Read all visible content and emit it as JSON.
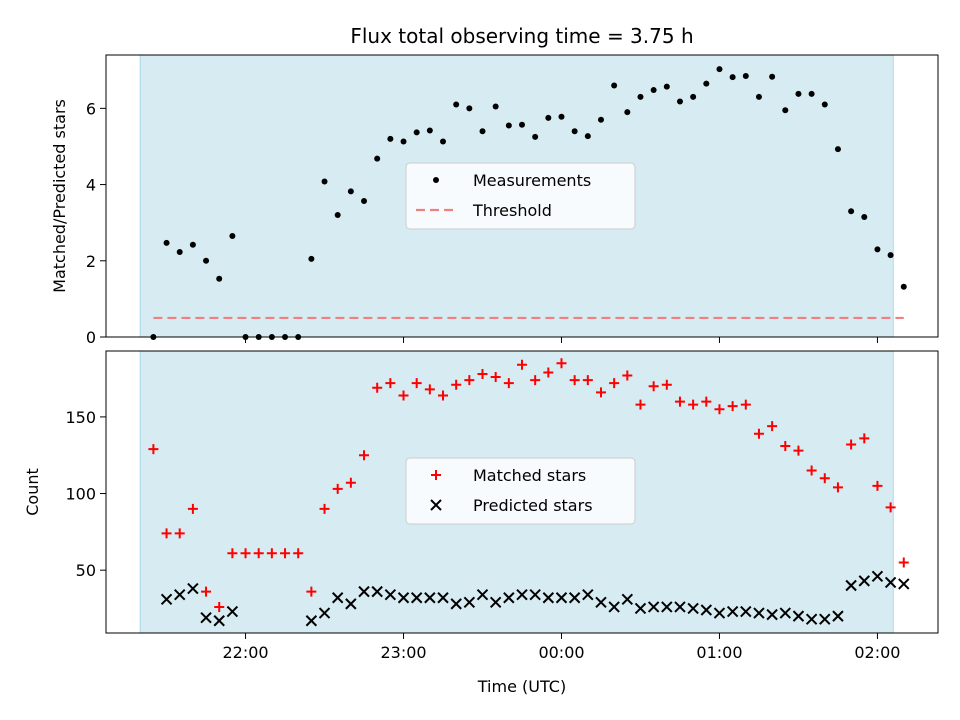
{
  "chart_data": [
    {
      "type": "scatter",
      "title": "Flux total observing time = 3.75 h",
      "xlabel": "",
      "ylabel": "Matched/Predicted stars",
      "ylim": [
        0,
        7.4
      ],
      "yticks": [
        0,
        2,
        4,
        6
      ],
      "shaded_span": [
        "21:20",
        "02:06"
      ],
      "shade_color": "#add8e6",
      "legend_position": "center",
      "series": [
        {
          "name": "Measurements",
          "marker": "dot",
          "color": "#000000",
          "points": [
            [
              "21:25",
              0.0
            ],
            [
              "21:30",
              2.47
            ],
            [
              "21:35",
              2.23
            ],
            [
              "21:40",
              2.42
            ],
            [
              "21:45",
              2.0
            ],
            [
              "21:50",
              1.53
            ],
            [
              "21:55",
              2.65
            ],
            [
              "22:00",
              0.0
            ],
            [
              "22:05",
              0.0
            ],
            [
              "22:10",
              0.0
            ],
            [
              "22:15",
              0.0
            ],
            [
              "22:20",
              0.0
            ],
            [
              "22:25",
              2.05
            ],
            [
              "22:30",
              4.08
            ],
            [
              "22:35",
              3.2
            ],
            [
              "22:40",
              3.82
            ],
            [
              "22:45",
              3.57
            ],
            [
              "22:50",
              4.68
            ],
            [
              "22:55",
              5.2
            ],
            [
              "23:00",
              5.13
            ],
            [
              "23:05",
              5.37
            ],
            [
              "23:10",
              5.42
            ],
            [
              "23:15",
              5.13
            ],
            [
              "23:20",
              6.1
            ],
            [
              "23:25",
              6.0
            ],
            [
              "23:30",
              5.4
            ],
            [
              "23:35",
              6.05
            ],
            [
              "23:40",
              5.55
            ],
            [
              "23:45",
              5.57
            ],
            [
              "23:50",
              5.25
            ],
            [
              "23:55",
              5.75
            ],
            [
              "00:00",
              5.78
            ],
            [
              "00:05",
              5.4
            ],
            [
              "00:10",
              5.27
            ],
            [
              "00:15",
              5.7
            ],
            [
              "00:20",
              6.6
            ],
            [
              "00:25",
              5.9
            ],
            [
              "00:30",
              6.3
            ],
            [
              "00:35",
              6.48
            ],
            [
              "00:40",
              6.57
            ],
            [
              "00:45",
              6.18
            ],
            [
              "00:50",
              6.3
            ],
            [
              "00:55",
              6.65
            ],
            [
              "01:00",
              7.03
            ],
            [
              "01:05",
              6.82
            ],
            [
              "01:10",
              6.85
            ],
            [
              "01:15",
              6.3
            ],
            [
              "01:20",
              6.83
            ],
            [
              "01:25",
              5.95
            ],
            [
              "01:30",
              6.38
            ],
            [
              "01:35",
              6.38
            ],
            [
              "01:40",
              6.1
            ],
            [
              "01:45",
              4.93
            ],
            [
              "01:50",
              3.3
            ],
            [
              "01:55",
              3.15
            ],
            [
              "02:00",
              2.3
            ],
            [
              "02:05",
              2.15
            ],
            [
              "02:10",
              1.32
            ]
          ]
        },
        {
          "name": "Threshold",
          "marker": "dashed-line",
          "color": "#f08080",
          "points": [
            [
              "21:25",
              0.5
            ],
            [
              "02:10",
              0.5
            ]
          ]
        }
      ]
    },
    {
      "type": "scatter",
      "title": "",
      "xlabel": "Time (UTC)",
      "ylabel": "Count",
      "ylim": [
        9,
        193
      ],
      "yticks": [
        50,
        100,
        150
      ],
      "xticks": [
        "22:00",
        "23:00",
        "00:00",
        "01:00",
        "02:00"
      ],
      "shaded_span": [
        "21:20",
        "02:06"
      ],
      "shade_color": "#add8e6",
      "legend_position": "center",
      "series": [
        {
          "name": "Matched stars",
          "marker": "plus",
          "color": "#ff0000",
          "points": [
            [
              "21:25",
              129
            ],
            [
              "21:30",
              74
            ],
            [
              "21:35",
              74
            ],
            [
              "21:40",
              90
            ],
            [
              "21:45",
              36
            ],
            [
              "21:50",
              26
            ],
            [
              "21:55",
              61
            ],
            [
              "22:00",
              61
            ],
            [
              "22:05",
              61
            ],
            [
              "22:10",
              61
            ],
            [
              "22:15",
              61
            ],
            [
              "22:20",
              61
            ],
            [
              "22:25",
              36
            ],
            [
              "22:30",
              90
            ],
            [
              "22:35",
              103
            ],
            [
              "22:40",
              107
            ],
            [
              "22:45",
              125
            ],
            [
              "22:50",
              169
            ],
            [
              "22:55",
              172
            ],
            [
              "23:00",
              164
            ],
            [
              "23:05",
              172
            ],
            [
              "23:10",
              168
            ],
            [
              "23:15",
              164
            ],
            [
              "23:20",
              171
            ],
            [
              "23:25",
              174
            ],
            [
              "23:30",
              178
            ],
            [
              "23:35",
              176
            ],
            [
              "23:40",
              172
            ],
            [
              "23:45",
              184
            ],
            [
              "23:50",
              174
            ],
            [
              "23:55",
              179
            ],
            [
              "00:00",
              185
            ],
            [
              "00:05",
              174
            ],
            [
              "00:10",
              174
            ],
            [
              "00:15",
              166
            ],
            [
              "00:20",
              172
            ],
            [
              "00:25",
              177
            ],
            [
              "00:30",
              158
            ],
            [
              "00:35",
              170
            ],
            [
              "00:40",
              171
            ],
            [
              "00:45",
              160
            ],
            [
              "00:50",
              158
            ],
            [
              "00:55",
              160
            ],
            [
              "01:00",
              155
            ],
            [
              "01:05",
              157
            ],
            [
              "01:10",
              158
            ],
            [
              "01:15",
              139
            ],
            [
              "01:20",
              144
            ],
            [
              "01:25",
              131
            ],
            [
              "01:30",
              128
            ],
            [
              "01:35",
              115
            ],
            [
              "01:40",
              110
            ],
            [
              "01:45",
              104
            ],
            [
              "01:50",
              132
            ],
            [
              "01:55",
              136
            ],
            [
              "02:00",
              105
            ],
            [
              "02:05",
              91
            ],
            [
              "02:10",
              55
            ]
          ]
        },
        {
          "name": "Predicted stars",
          "marker": "x",
          "color": "#000000",
          "points": [
            [
              "21:30",
              31
            ],
            [
              "21:35",
              34
            ],
            [
              "21:40",
              38
            ],
            [
              "21:45",
              19
            ],
            [
              "21:50",
              17
            ],
            [
              "21:55",
              23
            ],
            [
              "22:25",
              17
            ],
            [
              "22:30",
              22
            ],
            [
              "22:35",
              32
            ],
            [
              "22:40",
              28
            ],
            [
              "22:45",
              36
            ],
            [
              "22:50",
              36
            ],
            [
              "22:55",
              34
            ],
            [
              "23:00",
              32
            ],
            [
              "23:05",
              32
            ],
            [
              "23:10",
              32
            ],
            [
              "23:15",
              32
            ],
            [
              "23:20",
              28
            ],
            [
              "23:25",
              29
            ],
            [
              "23:30",
              34
            ],
            [
              "23:35",
              29
            ],
            [
              "23:40",
              32
            ],
            [
              "23:45",
              34
            ],
            [
              "23:50",
              34
            ],
            [
              "23:55",
              32
            ],
            [
              "00:00",
              32
            ],
            [
              "00:05",
              32
            ],
            [
              "00:10",
              34
            ],
            [
              "00:15",
              29
            ],
            [
              "00:20",
              26
            ],
            [
              "00:25",
              31
            ],
            [
              "00:30",
              25
            ],
            [
              "00:35",
              26
            ],
            [
              "00:40",
              26
            ],
            [
              "00:45",
              26
            ],
            [
              "00:50",
              25
            ],
            [
              "00:55",
              24
            ],
            [
              "01:00",
              22
            ],
            [
              "01:05",
              23
            ],
            [
              "01:10",
              23
            ],
            [
              "01:15",
              22
            ],
            [
              "01:20",
              21
            ],
            [
              "01:25",
              22
            ],
            [
              "01:30",
              20
            ],
            [
              "01:35",
              18
            ],
            [
              "01:40",
              18
            ],
            [
              "01:45",
              20
            ],
            [
              "01:50",
              40
            ],
            [
              "01:55",
              43
            ],
            [
              "02:00",
              46
            ],
            [
              "02:05",
              42
            ],
            [
              "02:10",
              41
            ]
          ]
        }
      ]
    }
  ]
}
